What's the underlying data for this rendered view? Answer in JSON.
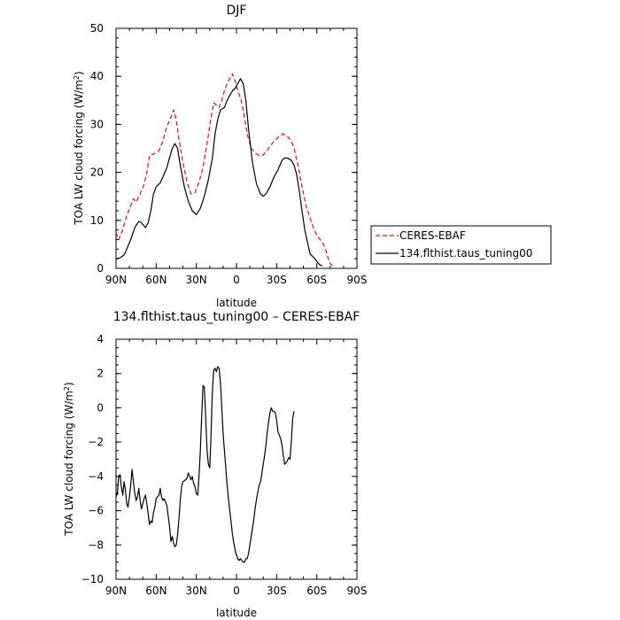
{
  "chart_data": [
    {
      "type": "line",
      "title": "DJF",
      "xlabel": "latitude",
      "ylabel": "TOA LW cloud forcing (W/m²)",
      "xlim": [
        90,
        -90
      ],
      "ylim": [
        0,
        50
      ],
      "x_ticks": [
        90,
        60,
        30,
        0,
        -30,
        -60,
        -90
      ],
      "x_tick_labels": [
        "90N",
        "60N",
        "30N",
        "0",
        "30S",
        "60S",
        "90S"
      ],
      "y_ticks": [
        0,
        10,
        20,
        30,
        40,
        50
      ],
      "y_tick_labels": [
        "0",
        "10",
        "20",
        "30",
        "40",
        "50"
      ],
      "legend_position": "right",
      "series": [
        {
          "name": "CERES-EBAF",
          "color": "#ff0000",
          "dash": "dashed",
          "points": [
            [
              90,
              7.5
            ],
            [
              88,
              6
            ],
            [
              85,
              8
            ],
            [
              82,
              11
            ],
            [
              79,
              13
            ],
            [
              77,
              14.5
            ],
            [
              75,
              13.8
            ],
            [
              72,
              15.5
            ],
            [
              69,
              17.5
            ],
            [
              67,
              20
            ],
            [
              65,
              23.5
            ],
            [
              62,
              23.8
            ],
            [
              58,
              24.5
            ],
            [
              55,
              26.5
            ],
            [
              52,
              29.5
            ],
            [
              49,
              31.5
            ],
            [
              47,
              33
            ],
            [
              45,
              31
            ],
            [
              43,
              27
            ],
            [
              40,
              22
            ],
            [
              37,
              18
            ],
            [
              34,
              15.5
            ],
            [
              31,
              15.8
            ],
            [
              28,
              18
            ],
            [
              25,
              21
            ],
            [
              22,
              26
            ],
            [
              19,
              31.5
            ],
            [
              17,
              34.5
            ],
            [
              15,
              34
            ],
            [
              13,
              33.5
            ],
            [
              11,
              35
            ],
            [
              9,
              37
            ],
            [
              7,
              38.5
            ],
            [
              5,
              39.5
            ],
            [
              3,
              40.5
            ],
            [
              1,
              39
            ],
            [
              -1,
              37
            ],
            [
              -3,
              35.5
            ],
            [
              -5,
              33
            ],
            [
              -8,
              28
            ],
            [
              -11,
              25
            ],
            [
              -14,
              24
            ],
            [
              -17,
              23.5
            ],
            [
              -20,
              23.6
            ],
            [
              -24,
              25
            ],
            [
              -28,
              26.5
            ],
            [
              -32,
              27.5
            ],
            [
              -35,
              28
            ],
            [
              -38,
              27.5
            ],
            [
              -41,
              26.5
            ],
            [
              -43,
              25
            ],
            [
              -46,
              21.5
            ],
            [
              -49,
              17
            ],
            [
              -52,
              13
            ],
            [
              -55,
              10.5
            ],
            [
              -58,
              8
            ],
            [
              -61,
              6.5
            ],
            [
              -64,
              5.5
            ],
            [
              -66,
              4.5
            ],
            [
              -68,
              2.5
            ],
            [
              -70,
              1
            ],
            [
              -72,
              0.5
            ]
          ]
        },
        {
          "name": "134.flthist.taus_tuning00",
          "color": "#000000",
          "dash": "solid",
          "points": [
            [
              90,
              2
            ],
            [
              87,
              2.2
            ],
            [
              84,
              2.8
            ],
            [
              82,
              4
            ],
            [
              79,
              6
            ],
            [
              76,
              8.5
            ],
            [
              73,
              9.8
            ],
            [
              71,
              9.5
            ],
            [
              68,
              8.5
            ],
            [
              66,
              9.5
            ],
            [
              64,
              12
            ],
            [
              62,
              15.5
            ],
            [
              60,
              17
            ],
            [
              57,
              17.8
            ],
            [
              55,
              19
            ],
            [
              52,
              21
            ],
            [
              50,
              23
            ],
            [
              48,
              25
            ],
            [
              46,
              26
            ],
            [
              44,
              25
            ],
            [
              42,
              21.5
            ],
            [
              39,
              17
            ],
            [
              36,
              14
            ],
            [
              33,
              12
            ],
            [
              30,
              11.2
            ],
            [
              27,
              12.5
            ],
            [
              24,
              15
            ],
            [
              21,
              18.5
            ],
            [
              18,
              23
            ],
            [
              16,
              28
            ],
            [
              14,
              31
            ],
            [
              12,
              33
            ],
            [
              9,
              33.5
            ],
            [
              7,
              35
            ],
            [
              5,
              36
            ],
            [
              3,
              37
            ],
            [
              1,
              37.5
            ],
            [
              -1,
              38.5
            ],
            [
              -3,
              39.5
            ],
            [
              -5,
              38.5
            ],
            [
              -7,
              35
            ],
            [
              -9,
              29
            ],
            [
              -12,
              22
            ],
            [
              -15,
              17.5
            ],
            [
              -18,
              15.5
            ],
            [
              -20,
              15
            ],
            [
              -22,
              15.5
            ],
            [
              -25,
              17
            ],
            [
              -28,
              19
            ],
            [
              -31,
              20.5
            ],
            [
              -34,
              22.5
            ],
            [
              -36,
              23
            ],
            [
              -38,
              23
            ],
            [
              -41,
              22.5
            ],
            [
              -43,
              21.5
            ],
            [
              -45,
              19.5
            ],
            [
              -47,
              16
            ],
            [
              -49,
              12
            ],
            [
              -51,
              8
            ],
            [
              -53,
              5.5
            ],
            [
              -55,
              3
            ],
            [
              -58,
              2.2
            ],
            [
              -60,
              1.5
            ],
            [
              -62,
              0.8
            ],
            [
              -64,
              0.5
            ]
          ]
        }
      ]
    },
    {
      "type": "line",
      "title": "134.flthist.taus_tuning00 – CERES-EBAF",
      "xlabel": "latitude",
      "ylabel": "TOA LW cloud forcing (W/m²)",
      "xlim": [
        90,
        -90
      ],
      "ylim": [
        -10,
        4
      ],
      "x_ticks": [
        90,
        60,
        30,
        0,
        -30,
        -60,
        -90
      ],
      "x_tick_labels": [
        "90N",
        "60N",
        "30N",
        "0",
        "30S",
        "60S",
        "90S"
      ],
      "y_ticks": [
        -10,
        -8,
        -6,
        -4,
        -2,
        0,
        2,
        4
      ],
      "y_tick_labels": [
        "−10",
        "−8",
        "−6",
        "−4",
        "−2",
        "0",
        "2",
        "4"
      ],
      "series": [
        {
          "color": "#000000",
          "dash": "solid",
          "points": [
            [
              90,
              -5.2
            ],
            [
              89,
              -5.0
            ],
            [
              88,
              -4.0
            ],
            [
              87,
              -3.9
            ],
            [
              86,
              -4.6
            ],
            [
              85,
              -5.1
            ],
            [
              84,
              -4.3
            ],
            [
              83,
              -4.8
            ],
            [
              82,
              -5.6
            ],
            [
              81,
              -5.8
            ],
            [
              80,
              -5.2
            ],
            [
              79,
              -4.5
            ],
            [
              78,
              -3.6
            ],
            [
              77,
              -4.3
            ],
            [
              76,
              -5.0
            ],
            [
              75,
              -5.4
            ],
            [
              74,
              -5.2
            ],
            [
              73,
              -4.7
            ],
            [
              72,
              -5.4
            ],
            [
              71,
              -5.9
            ],
            [
              70,
              -5.6
            ],
            [
              69,
              -5.3
            ],
            [
              68,
              -5.1
            ],
            [
              67,
              -5.6
            ],
            [
              66,
              -6.2
            ],
            [
              65,
              -6.8
            ],
            [
              64,
              -6.6
            ],
            [
              63,
              -6.7
            ],
            [
              62,
              -6.1
            ],
            [
              61,
              -5.8
            ],
            [
              60,
              -5.3
            ],
            [
              59,
              -5.2
            ],
            [
              58,
              -5.1
            ],
            [
              57,
              -4.7
            ],
            [
              56,
              -5.2
            ],
            [
              55,
              -5.4
            ],
            [
              54,
              -5.3
            ],
            [
              53,
              -5.5
            ],
            [
              52,
              -5.7
            ],
            [
              51,
              -6.3
            ],
            [
              50,
              -6.9
            ],
            [
              49,
              -7.8
            ],
            [
              48,
              -7.5
            ],
            [
              47,
              -7.9
            ],
            [
              46,
              -8.1
            ],
            [
              45,
              -8.0
            ],
            [
              44,
              -7.4
            ],
            [
              43,
              -6.5
            ],
            [
              42,
              -5.4
            ],
            [
              41,
              -4.6
            ],
            [
              40,
              -4.3
            ],
            [
              38,
              -4.2
            ],
            [
              37,
              -4.1
            ],
            [
              36,
              -3.8
            ],
            [
              35,
              -4.0
            ],
            [
              34,
              -4.2
            ],
            [
              33,
              -4.0
            ],
            [
              32,
              -4.4
            ],
            [
              31,
              -4.6
            ],
            [
              30,
              -5.0
            ],
            [
              29,
              -5.1
            ],
            [
              28,
              -4.0
            ],
            [
              27,
              -2.5
            ],
            [
              26,
              -0.5
            ],
            [
              25,
              1.3
            ],
            [
              24,
              1.2
            ],
            [
              23,
              -0.5
            ],
            [
              22,
              -2.5
            ],
            [
              21,
              -3.3
            ],
            [
              20,
              -3.5
            ],
            [
              19,
              -1.5
            ],
            [
              18,
              1.0
            ],
            [
              17,
              2.2
            ],
            [
              16,
              2.3
            ],
            [
              15,
              2.1
            ],
            [
              14,
              2.4
            ],
            [
              13,
              2.3
            ],
            [
              12,
              1.5
            ],
            [
              11,
              0.0
            ],
            [
              10,
              -1.5
            ],
            [
              9,
              -2.5
            ],
            [
              8,
              -3.5
            ],
            [
              7,
              -4.5
            ],
            [
              6,
              -5.3
            ],
            [
              5,
              -6.0
            ],
            [
              4,
              -6.7
            ],
            [
              3,
              -7.4
            ],
            [
              2,
              -7.9
            ],
            [
              1,
              -8.3
            ],
            [
              0,
              -8.6
            ],
            [
              -1,
              -8.8
            ],
            [
              -2,
              -8.9
            ],
            [
              -3,
              -8.8
            ],
            [
              -4,
              -8.9
            ],
            [
              -5,
              -9.0
            ],
            [
              -6,
              -9.0
            ],
            [
              -7,
              -8.8
            ],
            [
              -8,
              -8.8
            ],
            [
              -9,
              -8.5
            ],
            [
              -10,
              -8.0
            ],
            [
              -11,
              -7.5
            ],
            [
              -12,
              -7.0
            ],
            [
              -13,
              -6.5
            ],
            [
              -14,
              -5.8
            ],
            [
              -15,
              -5.3
            ],
            [
              -16,
              -4.9
            ],
            [
              -17,
              -4.5
            ],
            [
              -18,
              -4.3
            ],
            [
              -19,
              -3.8
            ],
            [
              -20,
              -3.3
            ],
            [
              -21,
              -2.8
            ],
            [
              -22,
              -2.2
            ],
            [
              -23,
              -1.4
            ],
            [
              -24,
              -0.8
            ],
            [
              -25,
              -0.3
            ],
            [
              -26,
              0.0
            ],
            [
              -27,
              -0.2
            ],
            [
              -28,
              -0.2
            ],
            [
              -29,
              -0.3
            ],
            [
              -30,
              -0.7
            ],
            [
              -31,
              -1.4
            ],
            [
              -32,
              -1.6
            ],
            [
              -33,
              -1.8
            ],
            [
              -34,
              -2.2
            ],
            [
              -35,
              -2.8
            ],
            [
              -36,
              -3.3
            ],
            [
              -37,
              -3.2
            ],
            [
              -38,
              -3.1
            ],
            [
              -39,
              -2.9
            ],
            [
              -40,
              -3.0
            ],
            [
              -41,
              -1.9
            ],
            [
              -42,
              -0.6
            ],
            [
              -43,
              -0.2
            ]
          ]
        }
      ]
    }
  ]
}
